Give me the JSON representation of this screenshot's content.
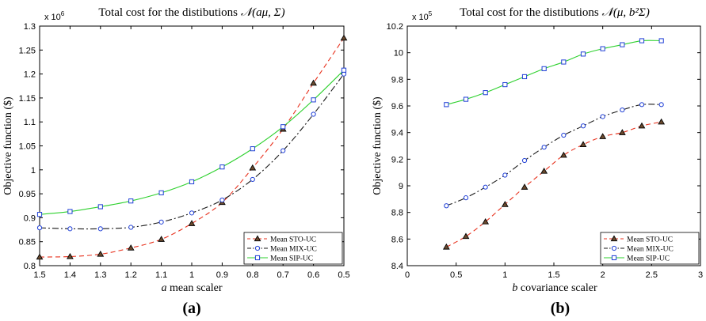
{
  "chart_data": [
    {
      "type": "line",
      "panel_label": "(a)",
      "title_prefix": "Total cost for the distibutions ",
      "title_math": "𝒩(aμ, Σ)",
      "xlabel_var": "a",
      "xlabel_rest": " mean scaler",
      "ylabel": "Objective function ($)",
      "y_multiplier": "x 10",
      "y_multiplier_exp": "6",
      "x": [
        1.5,
        1.4,
        1.3,
        1.2,
        1.1,
        1.0,
        0.9,
        0.8,
        0.7,
        0.6,
        0.5
      ],
      "x_tick_labels": [
        "1.5",
        "1.4",
        "1.3",
        "1.2",
        "1.1",
        "1",
        "0.9",
        "0.8",
        "0.7",
        "0.6",
        "0.5"
      ],
      "xlim": [
        1.5,
        0.5
      ],
      "x_reversed": true,
      "ylim": [
        0.8,
        1.3
      ],
      "y_ticks": [
        0.8,
        0.85,
        0.9,
        0.95,
        1.0,
        1.05,
        1.1,
        1.15,
        1.2,
        1.25,
        1.3
      ],
      "y_tick_labels": [
        "0.8",
        "0.85",
        "0.9",
        "0.95",
        "1",
        "1.05",
        "1.1",
        "1.15",
        "1.2",
        "1.25",
        "1.3"
      ],
      "grid": false,
      "legend_position": "bottom-right",
      "series": [
        {
          "name": "Mean STO-UC",
          "color": "#e8321e",
          "dash": "dashed",
          "marker": "triangle",
          "values": [
            0.818,
            0.819,
            0.824,
            0.837,
            0.855,
            0.888,
            0.932,
            1.004,
            1.085,
            1.181,
            1.275
          ]
        },
        {
          "name": "Mean MIX-UC",
          "color": "#1a1a1a",
          "dash": "dashdot",
          "marker": "circle",
          "values": [
            0.879,
            0.877,
            0.877,
            0.88,
            0.891,
            0.91,
            0.937,
            0.98,
            1.04,
            1.116,
            1.2
          ]
        },
        {
          "name": "Mean SIP-UC",
          "color": "#2ed12e",
          "dash": "solid",
          "marker": "square",
          "values": [
            0.907,
            0.913,
            0.923,
            0.935,
            0.952,
            0.975,
            1.006,
            1.044,
            1.09,
            1.146,
            1.208
          ]
        }
      ]
    },
    {
      "type": "line",
      "panel_label": "(b)",
      "title_prefix": "Total cost for the distibutions ",
      "title_math": "𝒩(μ, b²Σ)",
      "xlabel_var": "b",
      "xlabel_rest": " covariance scaler",
      "ylabel": "Objective function ($)",
      "y_multiplier": "x 10",
      "y_multiplier_exp": "5",
      "x": [
        0.4,
        0.6,
        0.8,
        1.0,
        1.2,
        1.4,
        1.6,
        1.8,
        2.0,
        2.2,
        2.4,
        2.6
      ],
      "x_ticks": [
        0,
        0.5,
        1,
        1.5,
        2,
        2.5,
        3
      ],
      "x_tick_labels": [
        "0",
        "0.5",
        "1",
        "1.5",
        "2",
        "2.5",
        "3"
      ],
      "xlim": [
        0,
        3
      ],
      "x_reversed": false,
      "ylim": [
        8.4,
        10.2
      ],
      "y_ticks": [
        8.4,
        8.6,
        8.8,
        9.0,
        9.2,
        9.4,
        9.6,
        9.8,
        10.0,
        10.2
      ],
      "y_tick_labels": [
        "8.4",
        "8.6",
        "8.8",
        "9",
        "9.2",
        "9.4",
        "9.6",
        "9.8",
        "10",
        "10.2"
      ],
      "grid": false,
      "legend_position": "bottom-right",
      "series": [
        {
          "name": "Mean STO-UC",
          "color": "#e8321e",
          "dash": "dashed",
          "marker": "triangle",
          "values": [
            8.54,
            8.62,
            8.73,
            8.86,
            8.99,
            9.11,
            9.23,
            9.31,
            9.37,
            9.4,
            9.45,
            9.48
          ]
        },
        {
          "name": "Mean MIX-UC",
          "color": "#1a1a1a",
          "dash": "dashdot",
          "marker": "circle",
          "values": [
            8.85,
            8.91,
            8.99,
            9.08,
            9.19,
            9.29,
            9.38,
            9.45,
            9.52,
            9.57,
            9.61,
            9.61
          ]
        },
        {
          "name": "Mean SIP-UC",
          "color": "#2ed12e",
          "dash": "solid",
          "marker": "square",
          "values": [
            9.61,
            9.65,
            9.7,
            9.76,
            9.82,
            9.88,
            9.93,
            9.99,
            10.03,
            10.06,
            10.09,
            10.09
          ]
        }
      ]
    }
  ]
}
